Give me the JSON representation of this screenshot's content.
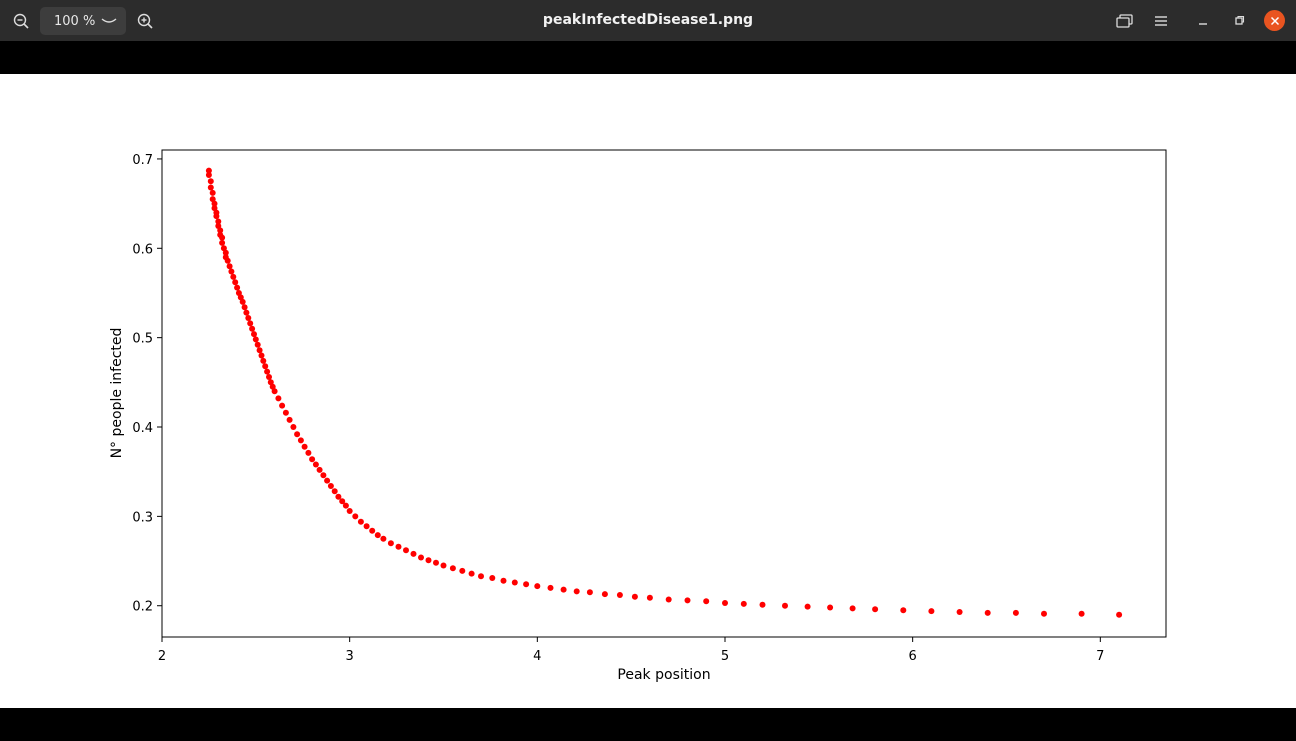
{
  "window": {
    "title": "peakInfectedDisease1.png",
    "zoom_value": "100 %",
    "icons": {
      "zoom_out": "zoom-out-icon",
      "zoom_in": "zoom-in-icon",
      "zoom_dropdown": "chevron-down-icon",
      "slideshow": "slideshow-icon",
      "menu": "hamburger-menu-icon",
      "minimize": "minimize-icon",
      "restore": "restore-icon",
      "close": "close-icon"
    },
    "close_color": "#e95420"
  },
  "chart_data": {
    "type": "scatter",
    "xlabel": "Peak position",
    "ylabel": "N° people infected",
    "xlim": [
      2.0,
      7.35
    ],
    "ylim": [
      0.165,
      0.71
    ],
    "xticks": [
      "2",
      "3",
      "4",
      "5",
      "6",
      "7"
    ],
    "yticks": [
      "0.2",
      "0.3",
      "0.4",
      "0.5",
      "0.6",
      "0.7"
    ],
    "xtick_values": [
      2,
      3,
      4,
      5,
      6,
      7
    ],
    "ytick_values": [
      0.2,
      0.3,
      0.4,
      0.5,
      0.6,
      0.7
    ],
    "color": "#ff0000",
    "grid": false,
    "points": [
      [
        2.25,
        0.687
      ],
      [
        2.25,
        0.682
      ],
      [
        2.26,
        0.675
      ],
      [
        2.26,
        0.668
      ],
      [
        2.27,
        0.662
      ],
      [
        2.27,
        0.655
      ],
      [
        2.28,
        0.65
      ],
      [
        2.28,
        0.645
      ],
      [
        2.29,
        0.64
      ],
      [
        2.29,
        0.636
      ],
      [
        2.3,
        0.63
      ],
      [
        2.3,
        0.625
      ],
      [
        2.31,
        0.62
      ],
      [
        2.31,
        0.615
      ],
      [
        2.32,
        0.612
      ],
      [
        2.32,
        0.606
      ],
      [
        2.33,
        0.6
      ],
      [
        2.34,
        0.595
      ],
      [
        2.34,
        0.59
      ],
      [
        2.35,
        0.586
      ],
      [
        2.36,
        0.58
      ],
      [
        2.37,
        0.574
      ],
      [
        2.38,
        0.568
      ],
      [
        2.39,
        0.562
      ],
      [
        2.4,
        0.556
      ],
      [
        2.41,
        0.55
      ],
      [
        2.42,
        0.545
      ],
      [
        2.43,
        0.54
      ],
      [
        2.44,
        0.534
      ],
      [
        2.45,
        0.528
      ],
      [
        2.46,
        0.522
      ],
      [
        2.47,
        0.516
      ],
      [
        2.48,
        0.51
      ],
      [
        2.49,
        0.504
      ],
      [
        2.5,
        0.498
      ],
      [
        2.51,
        0.492
      ],
      [
        2.52,
        0.486
      ],
      [
        2.53,
        0.48
      ],
      [
        2.54,
        0.474
      ],
      [
        2.55,
        0.468
      ],
      [
        2.56,
        0.462
      ],
      [
        2.57,
        0.456
      ],
      [
        2.58,
        0.45
      ],
      [
        2.59,
        0.445
      ],
      [
        2.6,
        0.44
      ],
      [
        2.62,
        0.432
      ],
      [
        2.64,
        0.424
      ],
      [
        2.66,
        0.416
      ],
      [
        2.68,
        0.408
      ],
      [
        2.7,
        0.4
      ],
      [
        2.72,
        0.392
      ],
      [
        2.74,
        0.385
      ],
      [
        2.76,
        0.378
      ],
      [
        2.78,
        0.371
      ],
      [
        2.8,
        0.364
      ],
      [
        2.82,
        0.358
      ],
      [
        2.84,
        0.352
      ],
      [
        2.86,
        0.346
      ],
      [
        2.88,
        0.34
      ],
      [
        2.9,
        0.334
      ],
      [
        2.92,
        0.328
      ],
      [
        2.94,
        0.322
      ],
      [
        2.96,
        0.317
      ],
      [
        2.98,
        0.312
      ],
      [
        3.0,
        0.306
      ],
      [
        3.03,
        0.3
      ],
      [
        3.06,
        0.294
      ],
      [
        3.09,
        0.289
      ],
      [
        3.12,
        0.284
      ],
      [
        3.15,
        0.279
      ],
      [
        3.18,
        0.275
      ],
      [
        3.22,
        0.27
      ],
      [
        3.26,
        0.266
      ],
      [
        3.3,
        0.262
      ],
      [
        3.34,
        0.258
      ],
      [
        3.38,
        0.254
      ],
      [
        3.42,
        0.251
      ],
      [
        3.46,
        0.248
      ],
      [
        3.5,
        0.245
      ],
      [
        3.55,
        0.242
      ],
      [
        3.6,
        0.239
      ],
      [
        3.65,
        0.236
      ],
      [
        3.7,
        0.233
      ],
      [
        3.76,
        0.231
      ],
      [
        3.82,
        0.228
      ],
      [
        3.88,
        0.226
      ],
      [
        3.94,
        0.224
      ],
      [
        4.0,
        0.222
      ],
      [
        4.07,
        0.22
      ],
      [
        4.14,
        0.218
      ],
      [
        4.21,
        0.216
      ],
      [
        4.28,
        0.215
      ],
      [
        4.36,
        0.213
      ],
      [
        4.44,
        0.212
      ],
      [
        4.52,
        0.21
      ],
      [
        4.6,
        0.209
      ],
      [
        4.7,
        0.207
      ],
      [
        4.8,
        0.206
      ],
      [
        4.9,
        0.205
      ],
      [
        5.0,
        0.203
      ],
      [
        5.1,
        0.202
      ],
      [
        5.2,
        0.201
      ],
      [
        5.32,
        0.2
      ],
      [
        5.44,
        0.199
      ],
      [
        5.56,
        0.198
      ],
      [
        5.68,
        0.197
      ],
      [
        5.8,
        0.196
      ],
      [
        5.95,
        0.195
      ],
      [
        6.1,
        0.194
      ],
      [
        6.25,
        0.193
      ],
      [
        6.4,
        0.192
      ],
      [
        6.55,
        0.192
      ],
      [
        6.7,
        0.191
      ],
      [
        6.9,
        0.191
      ],
      [
        7.1,
        0.19
      ]
    ]
  }
}
